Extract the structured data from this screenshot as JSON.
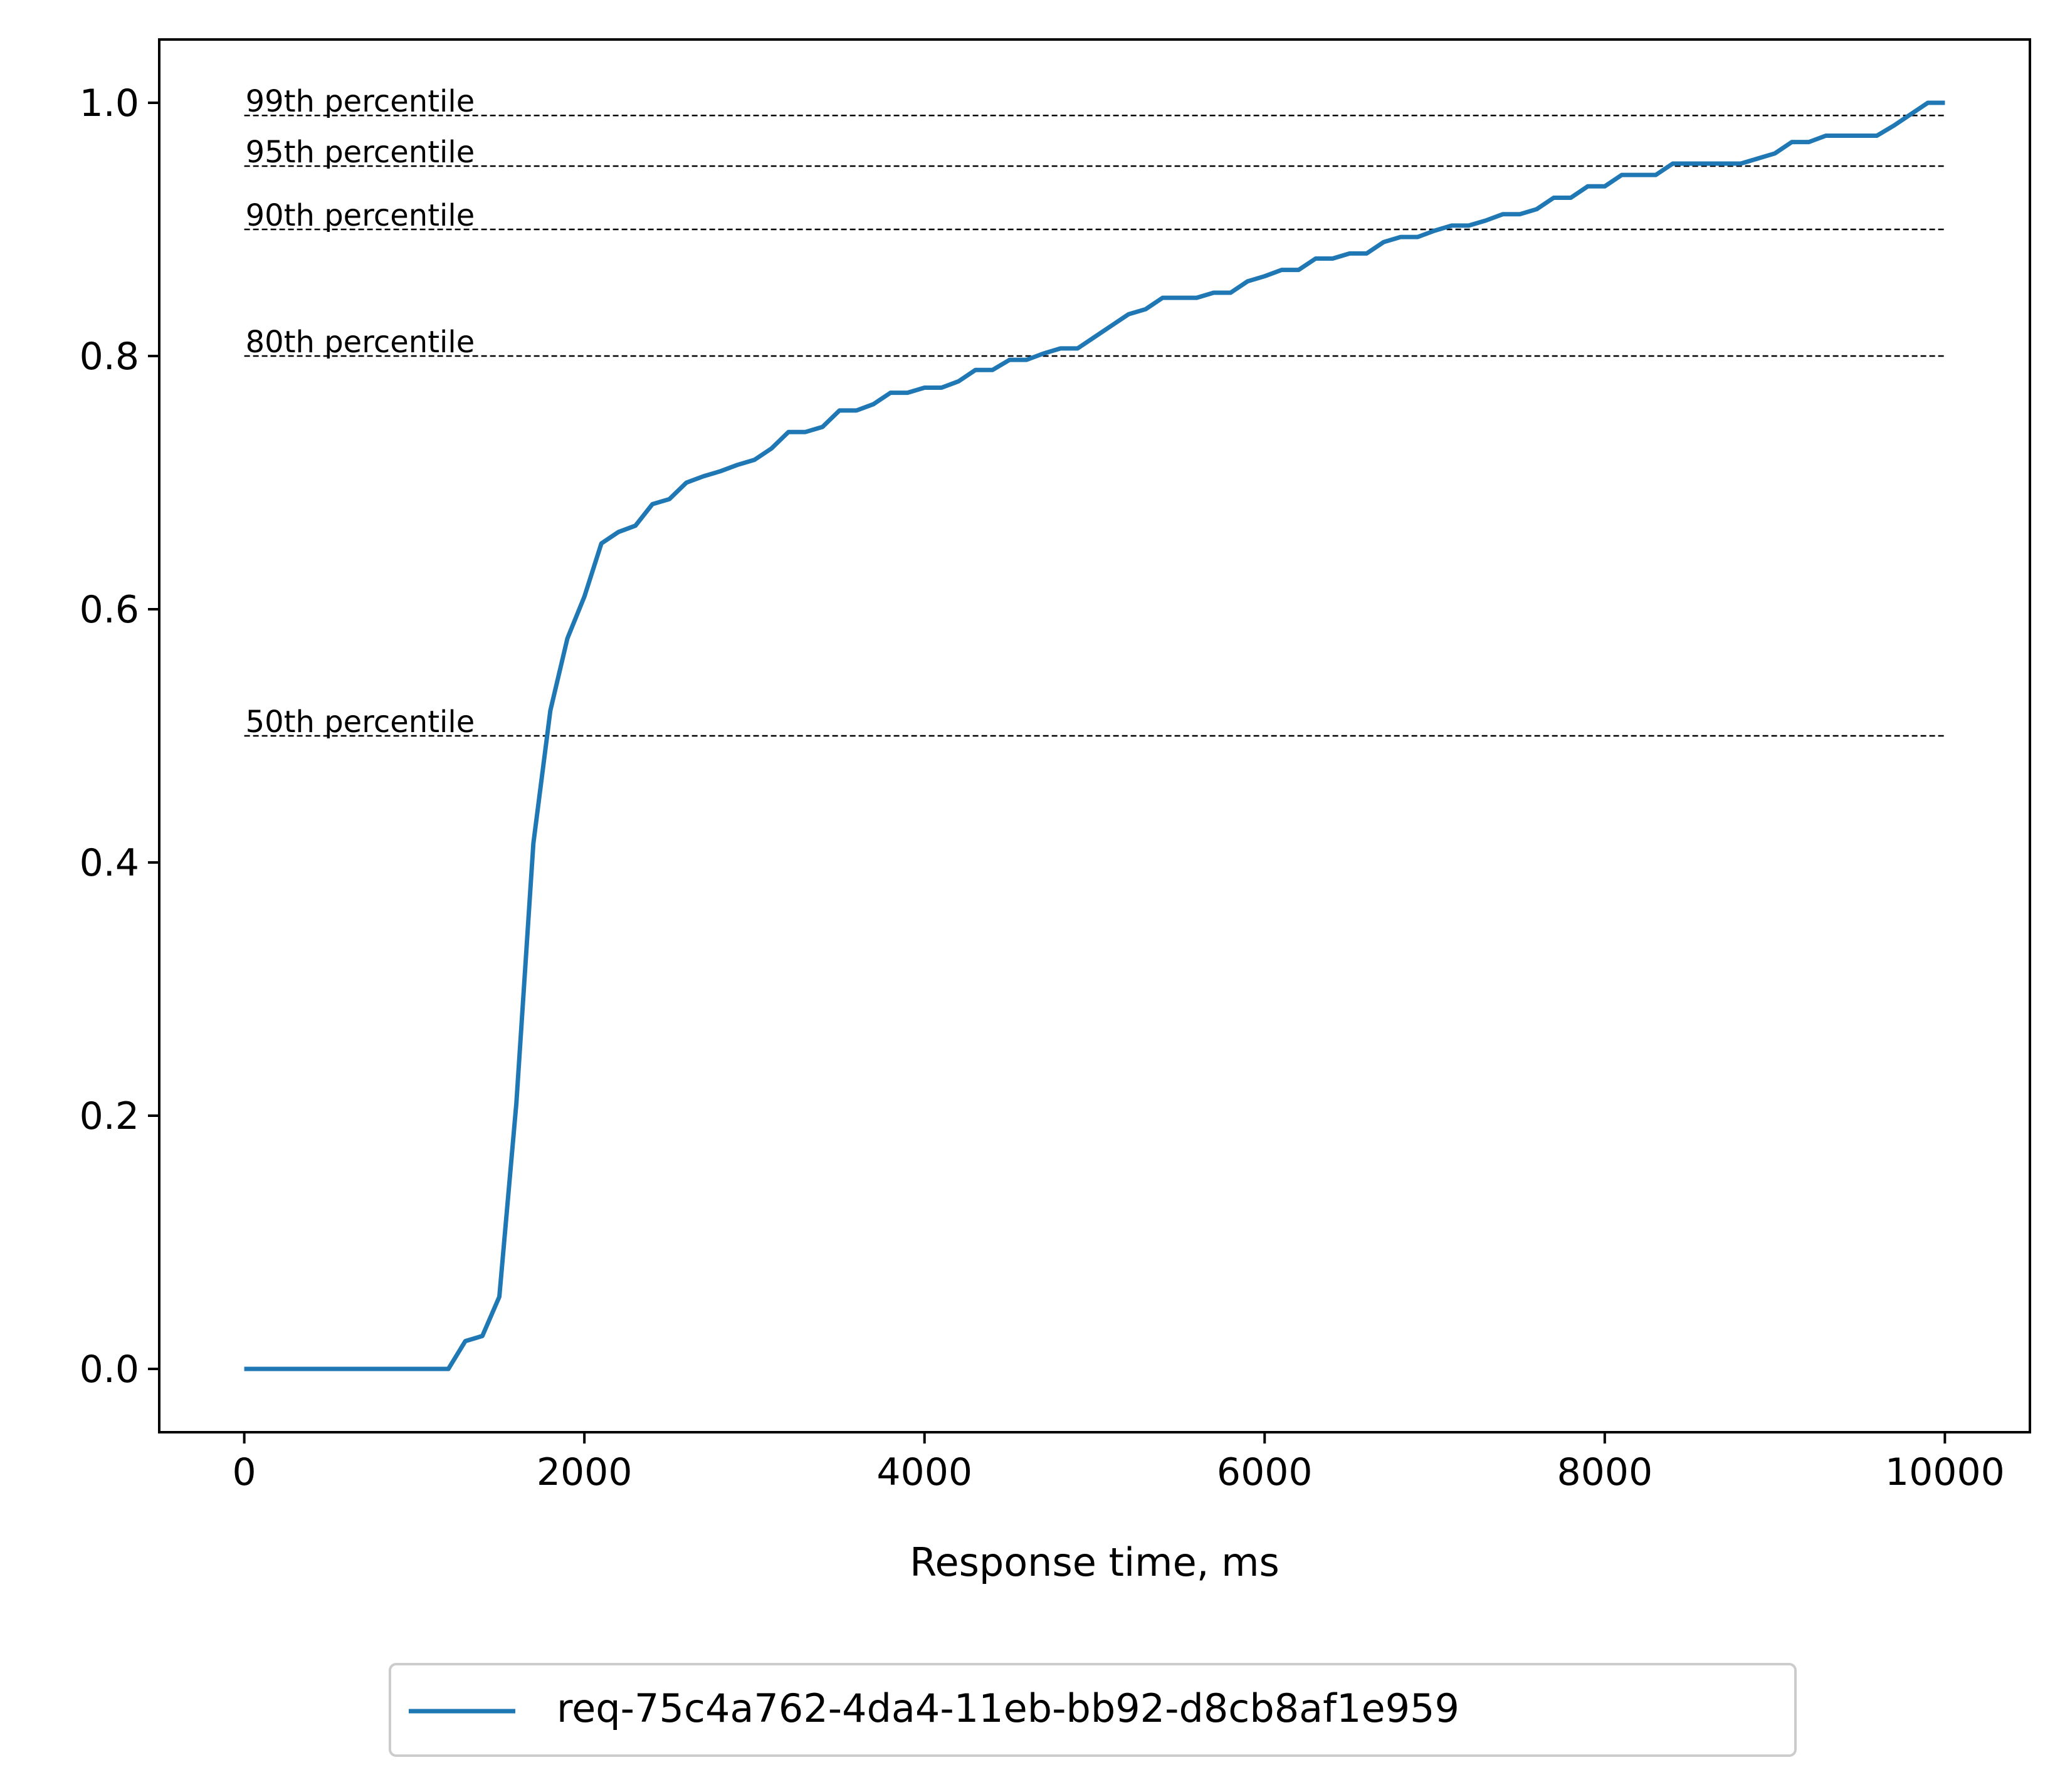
{
  "chart_data": {
    "type": "line",
    "xlabel": "Response time, ms",
    "ylabel": "",
    "title": "",
    "xlim": [
      -500,
      10500
    ],
    "ylim": [
      -0.05,
      1.05
    ],
    "xticks": [
      0,
      2000,
      4000,
      6000,
      8000,
      10000
    ],
    "yticks": [
      0.0,
      0.2,
      0.4,
      0.6,
      0.8,
      1.0
    ],
    "xtick_labels": [
      "0",
      "2000",
      "4000",
      "6000",
      "8000",
      "10000"
    ],
    "ytick_labels": [
      "0.0",
      "0.2",
      "0.4",
      "0.6",
      "0.8",
      "1.0"
    ],
    "grid": false,
    "legend_position": "bottom-center",
    "series": [
      {
        "name": "req-75c4a762-4da4-11eb-bb92-d8cb8af1e959",
        "color": "#1f77b4",
        "points": [
          [
            0,
            0.0
          ],
          [
            1200,
            0.0
          ],
          [
            1300,
            0.022
          ],
          [
            1400,
            0.026
          ],
          [
            1500,
            0.057
          ],
          [
            1600,
            0.21
          ],
          [
            1700,
            0.415
          ],
          [
            1800,
            0.52
          ],
          [
            1900,
            0.577
          ],
          [
            2000,
            0.61
          ],
          [
            2100,
            0.652
          ],
          [
            2200,
            0.661
          ],
          [
            2300,
            0.666
          ],
          [
            2400,
            0.683
          ],
          [
            2500,
            0.687
          ],
          [
            2600,
            0.7
          ],
          [
            2700,
            0.705
          ],
          [
            2800,
            0.709
          ],
          [
            2900,
            0.714
          ],
          [
            3000,
            0.718
          ],
          [
            3100,
            0.727
          ],
          [
            3200,
            0.74
          ],
          [
            3300,
            0.74
          ],
          [
            3400,
            0.744
          ],
          [
            3500,
            0.757
          ],
          [
            3600,
            0.757
          ],
          [
            3700,
            0.762
          ],
          [
            3800,
            0.771
          ],
          [
            3900,
            0.771
          ],
          [
            4000,
            0.775
          ],
          [
            4100,
            0.775
          ],
          [
            4200,
            0.78
          ],
          [
            4300,
            0.789
          ],
          [
            4400,
            0.789
          ],
          [
            4500,
            0.797
          ],
          [
            4600,
            0.797
          ],
          [
            4700,
            0.802
          ],
          [
            4800,
            0.806
          ],
          [
            4900,
            0.806
          ],
          [
            5000,
            0.815
          ],
          [
            5100,
            0.824
          ],
          [
            5200,
            0.833
          ],
          [
            5300,
            0.837
          ],
          [
            5400,
            0.846
          ],
          [
            5500,
            0.846
          ],
          [
            5600,
            0.846
          ],
          [
            5700,
            0.85
          ],
          [
            5800,
            0.85
          ],
          [
            5900,
            0.859
          ],
          [
            6000,
            0.863
          ],
          [
            6100,
            0.868
          ],
          [
            6200,
            0.868
          ],
          [
            6300,
            0.877
          ],
          [
            6400,
            0.877
          ],
          [
            6500,
            0.881
          ],
          [
            6600,
            0.881
          ],
          [
            6700,
            0.89
          ],
          [
            6800,
            0.894
          ],
          [
            6900,
            0.894
          ],
          [
            7000,
            0.899
          ],
          [
            7100,
            0.903
          ],
          [
            7200,
            0.903
          ],
          [
            7300,
            0.907
          ],
          [
            7400,
            0.912
          ],
          [
            7500,
            0.912
          ],
          [
            7600,
            0.916
          ],
          [
            7700,
            0.925
          ],
          [
            7800,
            0.925
          ],
          [
            7900,
            0.934
          ],
          [
            8000,
            0.934
          ],
          [
            8100,
            0.943
          ],
          [
            8200,
            0.943
          ],
          [
            8300,
            0.943
          ],
          [
            8400,
            0.952
          ],
          [
            8500,
            0.952
          ],
          [
            8600,
            0.952
          ],
          [
            8700,
            0.952
          ],
          [
            8800,
            0.952
          ],
          [
            8900,
            0.956
          ],
          [
            9000,
            0.96
          ],
          [
            9100,
            0.969
          ],
          [
            9200,
            0.969
          ],
          [
            9300,
            0.974
          ],
          [
            9400,
            0.974
          ],
          [
            9500,
            0.974
          ],
          [
            9600,
            0.974
          ],
          [
            9700,
            0.982
          ],
          [
            9800,
            0.991
          ],
          [
            9900,
            1.0
          ],
          [
            10000,
            1.0
          ]
        ]
      }
    ],
    "reference_lines": [
      {
        "label": "50th percentile",
        "y": 0.5,
        "x_start": 0,
        "x_end": 10000
      },
      {
        "label": "80th percentile",
        "y": 0.8,
        "x_start": 0,
        "x_end": 10000
      },
      {
        "label": "90th percentile",
        "y": 0.9,
        "x_start": 0,
        "x_end": 10000
      },
      {
        "label": "95th percentile",
        "y": 0.95,
        "x_start": 0,
        "x_end": 10000
      },
      {
        "label": "99th percentile",
        "y": 0.99,
        "x_start": 0,
        "x_end": 10000
      }
    ]
  }
}
